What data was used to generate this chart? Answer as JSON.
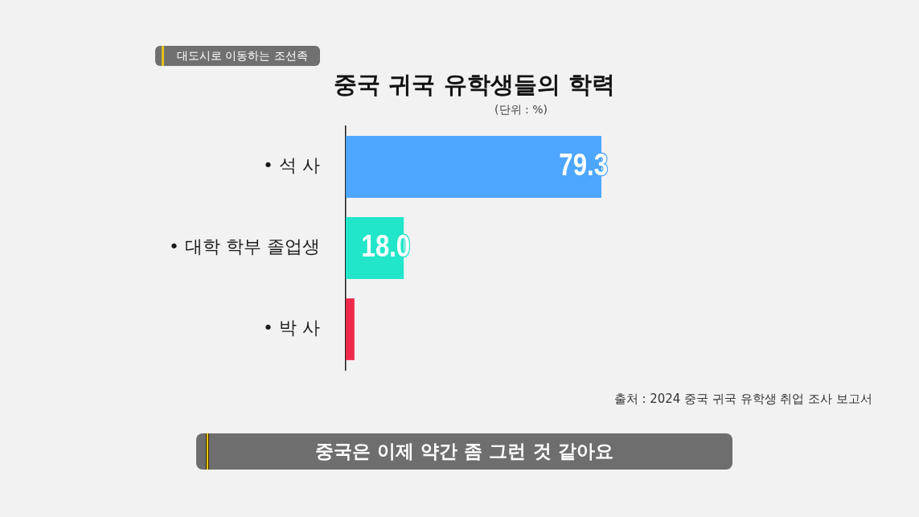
{
  "chart_data": {
    "type": "bar",
    "orientation": "horizontal",
    "title": "중국 귀국 유학생들의 학력",
    "subtitle": "(단위 : %)",
    "categories": [
      "• 석 사",
      "• 대학 학부 졸업생",
      "• 박 사"
    ],
    "values": [
      79.3,
      18.0,
      2.7
    ],
    "colors": [
      "#4da6ff",
      "#22e6c9",
      "#f0294b"
    ],
    "value_labels": [
      "79.3",
      "18.0",
      null
    ],
    "annotations": [
      "대도시로 이동하는 조선족",
      "출처 : 2024 중국 귀국 유학생 취업 조사 보고서",
      "중국은 이제 약간 좀 그런 것 같아요"
    ]
  }
}
